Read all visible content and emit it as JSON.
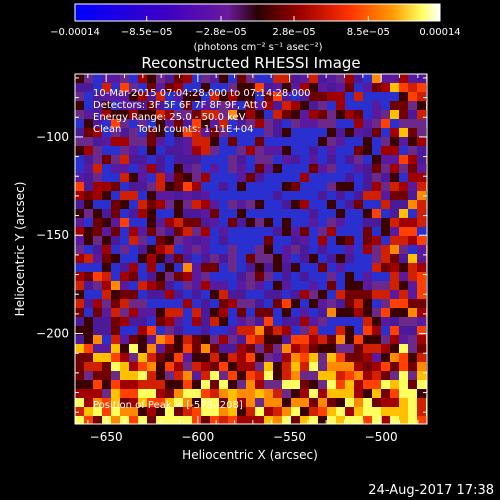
{
  "chart_data": {
    "type": "heatmap",
    "title": "Reconstructed RHESSI Image",
    "xlabel": "Heliocentric X (arcsec)",
    "ylabel": "Heliocentric Y (arcsec)",
    "xlim": [
      -667,
      -475
    ],
    "ylim": [
      -246,
      -68
    ],
    "x_ticks": [
      {
        "value": -650,
        "label": "−650"
      },
      {
        "value": -600,
        "label": "−600"
      },
      {
        "value": -550,
        "label": "−550"
      },
      {
        "value": -500,
        "label": "−500"
      }
    ],
    "y_ticks": [
      {
        "value": -100,
        "label": "−100"
      },
      {
        "value": -150,
        "label": "−150"
      },
      {
        "value": -200,
        "label": "−200"
      }
    ],
    "colorbar": {
      "min": -0.00014,
      "max": 0.00014,
      "tick_values": [
        -0.00014,
        -8.5e-05,
        -2.8e-05,
        2.8e-05,
        8.5e-05,
        0.00014
      ],
      "tick_labels": [
        "−0.00014",
        "−8.5e−05",
        "−2.8e−05",
        "2.8e−05",
        "8.5e−05",
        "0.00014"
      ],
      "unit_label": "(photons cm⁻² s⁻¹ asec⁻²)"
    },
    "annotations": [
      "10-Mar-2015 07:04:28.000 to 07:14:28.000",
      "Detectors: 3F 5F 6F 7F 8F 9F, Att 0",
      "Energy Range: 25.0 - 50.0 keV",
      "Clean     Total counts: 1.11E+04"
    ],
    "peak_label": "Position of Peak = [-573,-208]",
    "colors": {
      "low": "#0000ff",
      "mid": "#5a1aa0",
      "high": [
        "#3a0000",
        "#a00000",
        "#ff4000",
        "#ff9a00",
        "#ffff60",
        "#ffffff"
      ]
    }
  },
  "footer": {
    "timestamp": "24-Aug-2017 17:38"
  }
}
